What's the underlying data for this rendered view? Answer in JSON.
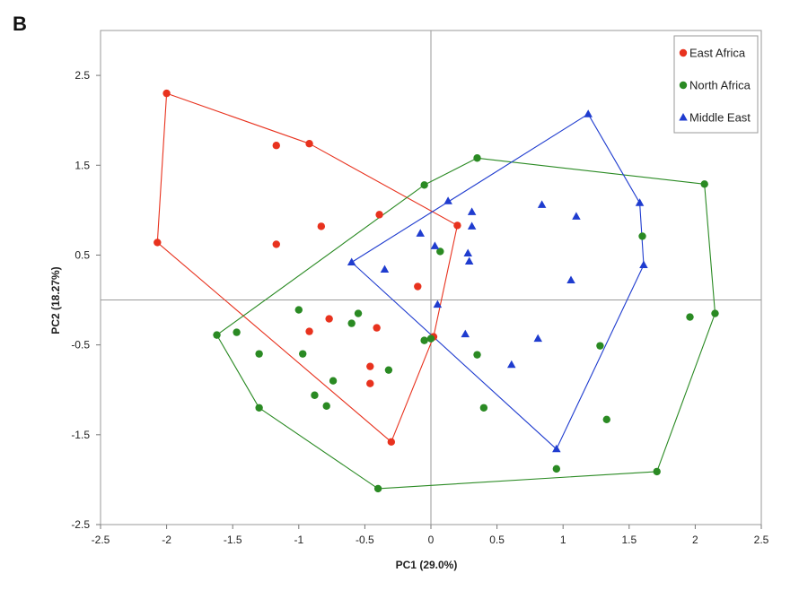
{
  "panel_label": "B",
  "chart_data": {
    "type": "scatter",
    "xlabel": "PC1 (29.0%)",
    "ylabel": "PC2 (18.27%)",
    "xlim": [
      -2.5,
      2.5
    ],
    "ylim": [
      -2.5,
      3.0
    ],
    "xticks": [
      -2.5,
      -2,
      -1.5,
      -1,
      -0.5,
      0,
      0.5,
      1,
      1.5,
      2,
      2.5
    ],
    "xtick_labels": [
      "-2.5",
      "-2",
      "-1.5",
      "-1",
      "-0.5",
      "0",
      "0.5",
      "1",
      "1.5",
      "2",
      "2.5"
    ],
    "yticks": [
      2.5,
      1.5,
      0.5,
      -0.5,
      -1.5,
      -2.5
    ],
    "ytick_labels": [
      "2.5",
      "1.5",
      "0.5",
      "-0.5",
      "-1.5",
      "-2.5"
    ],
    "zero_lines": true,
    "legend_position": "top-right",
    "series": [
      {
        "name": "East Africa",
        "marker": "circle",
        "color": "#e8321e",
        "points": [
          [
            -2.0,
            2.3
          ],
          [
            -2.07,
            0.64
          ],
          [
            -1.17,
            1.72
          ],
          [
            -0.92,
            1.74
          ],
          [
            -0.83,
            0.82
          ],
          [
            -1.17,
            0.62
          ],
          [
            -0.39,
            0.95
          ],
          [
            0.2,
            0.83
          ],
          [
            -0.1,
            0.15
          ],
          [
            -0.77,
            -0.21
          ],
          [
            -0.92,
            -0.35
          ],
          [
            -0.41,
            -0.31
          ],
          [
            -0.46,
            -0.74
          ],
          [
            -0.46,
            -0.93
          ],
          [
            0.02,
            -0.41
          ],
          [
            -0.3,
            -1.58
          ]
        ],
        "hull": [
          [
            -2.0,
            2.3
          ],
          [
            -0.92,
            1.74
          ],
          [
            0.2,
            0.83
          ],
          [
            0.02,
            -0.41
          ],
          [
            -0.3,
            -1.58
          ],
          [
            -2.07,
            0.64
          ]
        ]
      },
      {
        "name": "North Africa",
        "marker": "circle",
        "color": "#2a8a23",
        "points": [
          [
            0.35,
            1.58
          ],
          [
            -0.05,
            1.28
          ],
          [
            0.07,
            0.54
          ],
          [
            -1.0,
            -0.11
          ],
          [
            -0.55,
            -0.15
          ],
          [
            -0.6,
            -0.26
          ],
          [
            -1.47,
            -0.36
          ],
          [
            -1.62,
            -0.39
          ],
          [
            -1.3,
            -0.6
          ],
          [
            -0.97,
            -0.6
          ],
          [
            -0.05,
            -0.45
          ],
          [
            0.0,
            -0.43
          ],
          [
            -0.32,
            -0.78
          ],
          [
            -0.74,
            -0.9
          ],
          [
            -0.88,
            -1.06
          ],
          [
            -0.79,
            -1.18
          ],
          [
            -1.3,
            -1.2
          ],
          [
            0.35,
            -0.61
          ],
          [
            0.4,
            -1.2
          ],
          [
            -0.4,
            -2.1
          ],
          [
            0.95,
            -1.88
          ],
          [
            1.28,
            -0.51
          ],
          [
            1.33,
            -1.33
          ],
          [
            1.6,
            0.71
          ],
          [
            1.96,
            -0.19
          ],
          [
            2.07,
            1.29
          ],
          [
            2.15,
            -0.15
          ],
          [
            1.71,
            -1.91
          ]
        ],
        "hull": [
          [
            0.35,
            1.58
          ],
          [
            2.07,
            1.29
          ],
          [
            2.15,
            -0.15
          ],
          [
            1.71,
            -1.91
          ],
          [
            -0.4,
            -2.1
          ],
          [
            -1.3,
            -1.2
          ],
          [
            -1.62,
            -0.39
          ],
          [
            -0.05,
            1.28
          ]
        ]
      },
      {
        "name": "Middle East",
        "marker": "triangle",
        "color": "#1f3ccf",
        "points": [
          [
            1.19,
            2.07
          ],
          [
            0.13,
            1.1
          ],
          [
            0.31,
            0.98
          ],
          [
            0.84,
            1.06
          ],
          [
            1.1,
            0.93
          ],
          [
            1.58,
            1.08
          ],
          [
            -0.08,
            0.74
          ],
          [
            0.03,
            0.6
          ],
          [
            0.31,
            0.82
          ],
          [
            0.28,
            0.52
          ],
          [
            0.29,
            0.43
          ],
          [
            -0.6,
            0.42
          ],
          [
            -0.35,
            0.34
          ],
          [
            1.61,
            0.39
          ],
          [
            1.06,
            0.22
          ],
          [
            0.05,
            -0.05
          ],
          [
            0.26,
            -0.38
          ],
          [
            0.81,
            -0.43
          ],
          [
            0.61,
            -0.72
          ],
          [
            0.95,
            -1.66
          ]
        ],
        "hull": [
          [
            1.19,
            2.07
          ],
          [
            1.58,
            1.08
          ],
          [
            1.61,
            0.39
          ],
          [
            0.95,
            -1.66
          ],
          [
            -0.6,
            0.42
          ]
        ]
      }
    ]
  }
}
